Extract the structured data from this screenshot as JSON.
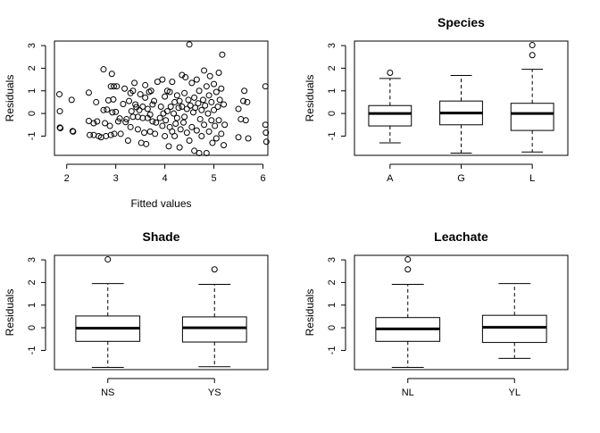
{
  "chart_data": [
    {
      "type": "scatter",
      "title": "",
      "xlabel": "Fitted values",
      "ylabel": "Residuals",
      "xlim": [
        1.75,
        6.1
      ],
      "ylim": [
        -1.85,
        3.2
      ],
      "xticks": [
        2,
        3,
        4,
        5,
        6
      ],
      "yticks": [
        -1,
        0,
        1,
        2,
        3
      ],
      "points": [
        [
          1.85,
          0.85
        ],
        [
          1.86,
          0.1
        ],
        [
          1.86,
          -0.62
        ],
        [
          1.87,
          -0.65
        ],
        [
          2.1,
          0.6
        ],
        [
          2.12,
          -0.78
        ],
        [
          2.13,
          -0.8
        ],
        [
          2.45,
          0.92
        ],
        [
          2.45,
          -0.33
        ],
        [
          2.47,
          -0.95
        ],
        [
          2.55,
          -0.95
        ],
        [
          2.55,
          -0.43
        ],
        [
          2.6,
          0.5
        ],
        [
          2.62,
          -0.35
        ],
        [
          2.65,
          -1.0
        ],
        [
          2.7,
          -1.05
        ],
        [
          2.75,
          0.15
        ],
        [
          2.75,
          1.95
        ],
        [
          2.78,
          -0.43
        ],
        [
          2.8,
          -1.0
        ],
        [
          2.82,
          0.17
        ],
        [
          2.85,
          0.58
        ],
        [
          2.88,
          -0.55
        ],
        [
          2.9,
          -0.95
        ],
        [
          2.9,
          1.2
        ],
        [
          2.92,
          1.75
        ],
        [
          2.93,
          0.05
        ],
        [
          2.95,
          0.62
        ],
        [
          2.96,
          1.2
        ],
        [
          2.97,
          -0.9
        ],
        [
          3.0,
          0.07
        ],
        [
          3.02,
          1.2
        ],
        [
          3.05,
          -0.35
        ],
        [
          3.08,
          -0.22
        ],
        [
          3.1,
          -0.9
        ],
        [
          3.15,
          0.42
        ],
        [
          3.18,
          1.1
        ],
        [
          3.2,
          -0.38
        ],
        [
          3.22,
          -0.25
        ],
        [
          3.25,
          -1.2
        ],
        [
          3.27,
          0.55
        ],
        [
          3.3,
          -0.6
        ],
        [
          3.3,
          0.9
        ],
        [
          3.32,
          0.1
        ],
        [
          3.35,
          -0.15
        ],
        [
          3.35,
          1.0
        ],
        [
          3.38,
          1.35
        ],
        [
          3.4,
          0.4
        ],
        [
          3.42,
          0.28
        ],
        [
          3.45,
          -0.7
        ],
        [
          3.45,
          -0.15
        ],
        [
          3.48,
          0.15
        ],
        [
          3.5,
          0.85
        ],
        [
          3.52,
          -1.3
        ],
        [
          3.55,
          0.3
        ],
        [
          3.55,
          -0.2
        ],
        [
          3.58,
          -0.85
        ],
        [
          3.6,
          1.25
        ],
        [
          3.6,
          0.7
        ],
        [
          3.62,
          -1.35
        ],
        [
          3.65,
          0.2
        ],
        [
          3.65,
          -0.2
        ],
        [
          3.68,
          0.95
        ],
        [
          3.7,
          -0.05
        ],
        [
          3.7,
          -0.8
        ],
        [
          3.72,
          1.0
        ],
        [
          3.75,
          0.4
        ],
        [
          3.75,
          -0.35
        ],
        [
          3.78,
          0.55
        ],
        [
          3.8,
          -0.9
        ],
        [
          3.82,
          -0.4
        ],
        [
          3.85,
          1.4
        ],
        [
          3.9,
          -0.2
        ],
        [
          3.92,
          0.3
        ],
        [
          3.95,
          -0.55
        ],
        [
          3.95,
          1.5
        ],
        [
          3.97,
          0.0
        ],
        [
          4.0,
          -1.0
        ],
        [
          4.0,
          0.75
        ],
        [
          4.02,
          -0.3
        ],
        [
          4.05,
          1.0
        ],
        [
          4.05,
          0.1
        ],
        [
          4.08,
          -1.45
        ],
        [
          4.1,
          -0.6
        ],
        [
          4.1,
          0.95
        ],
        [
          4.12,
          0.3
        ],
        [
          4.15,
          -0.8
        ],
        [
          4.15,
          1.4
        ],
        [
          4.18,
          0.0
        ],
        [
          4.2,
          -1.0
        ],
        [
          4.2,
          0.5
        ],
        [
          4.22,
          -0.45
        ],
        [
          4.25,
          0.8
        ],
        [
          4.25,
          -0.2
        ],
        [
          4.28,
          0.25
        ],
        [
          4.3,
          -1.5
        ],
        [
          4.3,
          0.55
        ],
        [
          4.32,
          -0.7
        ],
        [
          4.35,
          1.7
        ],
        [
          4.35,
          0.3
        ],
        [
          4.38,
          -0.4
        ],
        [
          4.4,
          0.9
        ],
        [
          4.4,
          -0.15
        ],
        [
          4.42,
          1.6
        ],
        [
          4.45,
          -0.85
        ],
        [
          4.45,
          0.2
        ],
        [
          4.48,
          0.6
        ],
        [
          4.5,
          -1.2
        ],
        [
          4.5,
          3.05
        ],
        [
          4.52,
          0.35
        ],
        [
          4.55,
          -0.6
        ],
        [
          4.55,
          1.35
        ],
        [
          4.58,
          0.05
        ],
        [
          4.6,
          -1.65
        ],
        [
          4.6,
          0.7
        ],
        [
          4.62,
          0.25
        ],
        [
          4.65,
          -0.75
        ],
        [
          4.65,
          1.5
        ],
        [
          4.68,
          0.45
        ],
        [
          4.7,
          -1.75
        ],
        [
          4.7,
          1.0
        ],
        [
          4.72,
          -0.25
        ],
        [
          4.75,
          0.15
        ],
        [
          4.75,
          -1.0
        ],
        [
          4.78,
          0.6
        ],
        [
          4.8,
          1.9
        ],
        [
          4.8,
          -0.5
        ],
        [
          4.82,
          0.35
        ],
        [
          4.85,
          -1.75
        ],
        [
          4.85,
          1.2
        ],
        [
          4.88,
          0.0
        ],
        [
          4.9,
          -0.8
        ],
        [
          4.9,
          0.8
        ],
        [
          4.92,
          1.65
        ],
        [
          4.95,
          -0.3
        ],
        [
          4.95,
          0.5
        ],
        [
          4.97,
          -1.3
        ],
        [
          5.0,
          0.15
        ],
        [
          5.0,
          1.3
        ],
        [
          5.02,
          -0.55
        ],
        [
          5.05,
          0.95
        ],
        [
          5.05,
          -1.1
        ],
        [
          5.08,
          0.3
        ],
        [
          5.1,
          1.8
        ],
        [
          5.1,
          -0.3
        ],
        [
          5.12,
          0.6
        ],
        [
          5.15,
          -0.9
        ],
        [
          5.15,
          1.1
        ],
        [
          5.17,
          2.6
        ],
        [
          5.2,
          -1.4
        ],
        [
          5.2,
          0.4
        ],
        [
          5.22,
          -0.5
        ],
        [
          5.5,
          0.2
        ],
        [
          5.5,
          -1.05
        ],
        [
          5.55,
          -0.25
        ],
        [
          5.6,
          0.55
        ],
        [
          5.62,
          1.0
        ],
        [
          5.65,
          -0.3
        ],
        [
          5.68,
          0.5
        ],
        [
          5.7,
          -1.1
        ],
        [
          6.05,
          1.2
        ],
        [
          6.05,
          -0.5
        ],
        [
          6.06,
          -0.85
        ],
        [
          6.07,
          -1.25
        ]
      ]
    },
    {
      "type": "box",
      "title": "Species",
      "xlabel": "",
      "ylabel": "Residuals",
      "ylim": [
        -1.85,
        3.2
      ],
      "yticks": [
        -1,
        0,
        1,
        2,
        3
      ],
      "categories": [
        "A",
        "G",
        "L"
      ],
      "boxes": [
        {
          "lower_whisker": -1.3,
          "q1": -0.55,
          "median": 0.0,
          "q3": 0.35,
          "upper_whisker": 1.55,
          "outliers": [
            1.8
          ]
        },
        {
          "lower_whisker": -1.75,
          "q1": -0.5,
          "median": 0.02,
          "q3": 0.55,
          "upper_whisker": 1.68,
          "outliers": []
        },
        {
          "lower_whisker": -1.7,
          "q1": -0.75,
          "median": 0.0,
          "q3": 0.45,
          "upper_whisker": 1.95,
          "outliers": [
            2.58,
            3.02
          ]
        }
      ]
    },
    {
      "type": "box",
      "title": "Shade",
      "xlabel": "",
      "ylabel": "Residuals",
      "ylim": [
        -1.85,
        3.2
      ],
      "yticks": [
        -1,
        0,
        1,
        2,
        3
      ],
      "categories": [
        "NS",
        "YS"
      ],
      "boxes": [
        {
          "lower_whisker": -1.75,
          "q1": -0.6,
          "median": -0.02,
          "q3": 0.52,
          "upper_whisker": 1.95,
          "outliers": [
            3.02
          ]
        },
        {
          "lower_whisker": -1.72,
          "q1": -0.63,
          "median": 0.0,
          "q3": 0.48,
          "upper_whisker": 1.92,
          "outliers": [
            2.58
          ]
        }
      ]
    },
    {
      "type": "box",
      "title": "Leachate",
      "xlabel": "",
      "ylabel": "Residuals",
      "ylim": [
        -1.85,
        3.2
      ],
      "yticks": [
        -1,
        0,
        1,
        2,
        3
      ],
      "categories": [
        "NL",
        "YL"
      ],
      "boxes": [
        {
          "lower_whisker": -1.75,
          "q1": -0.6,
          "median": -0.05,
          "q3": 0.45,
          "upper_whisker": 1.92,
          "outliers": [
            2.58,
            3.02
          ]
        },
        {
          "lower_whisker": -1.35,
          "q1": -0.65,
          "median": 0.02,
          "q3": 0.55,
          "upper_whisker": 1.95,
          "outliers": []
        }
      ]
    }
  ]
}
